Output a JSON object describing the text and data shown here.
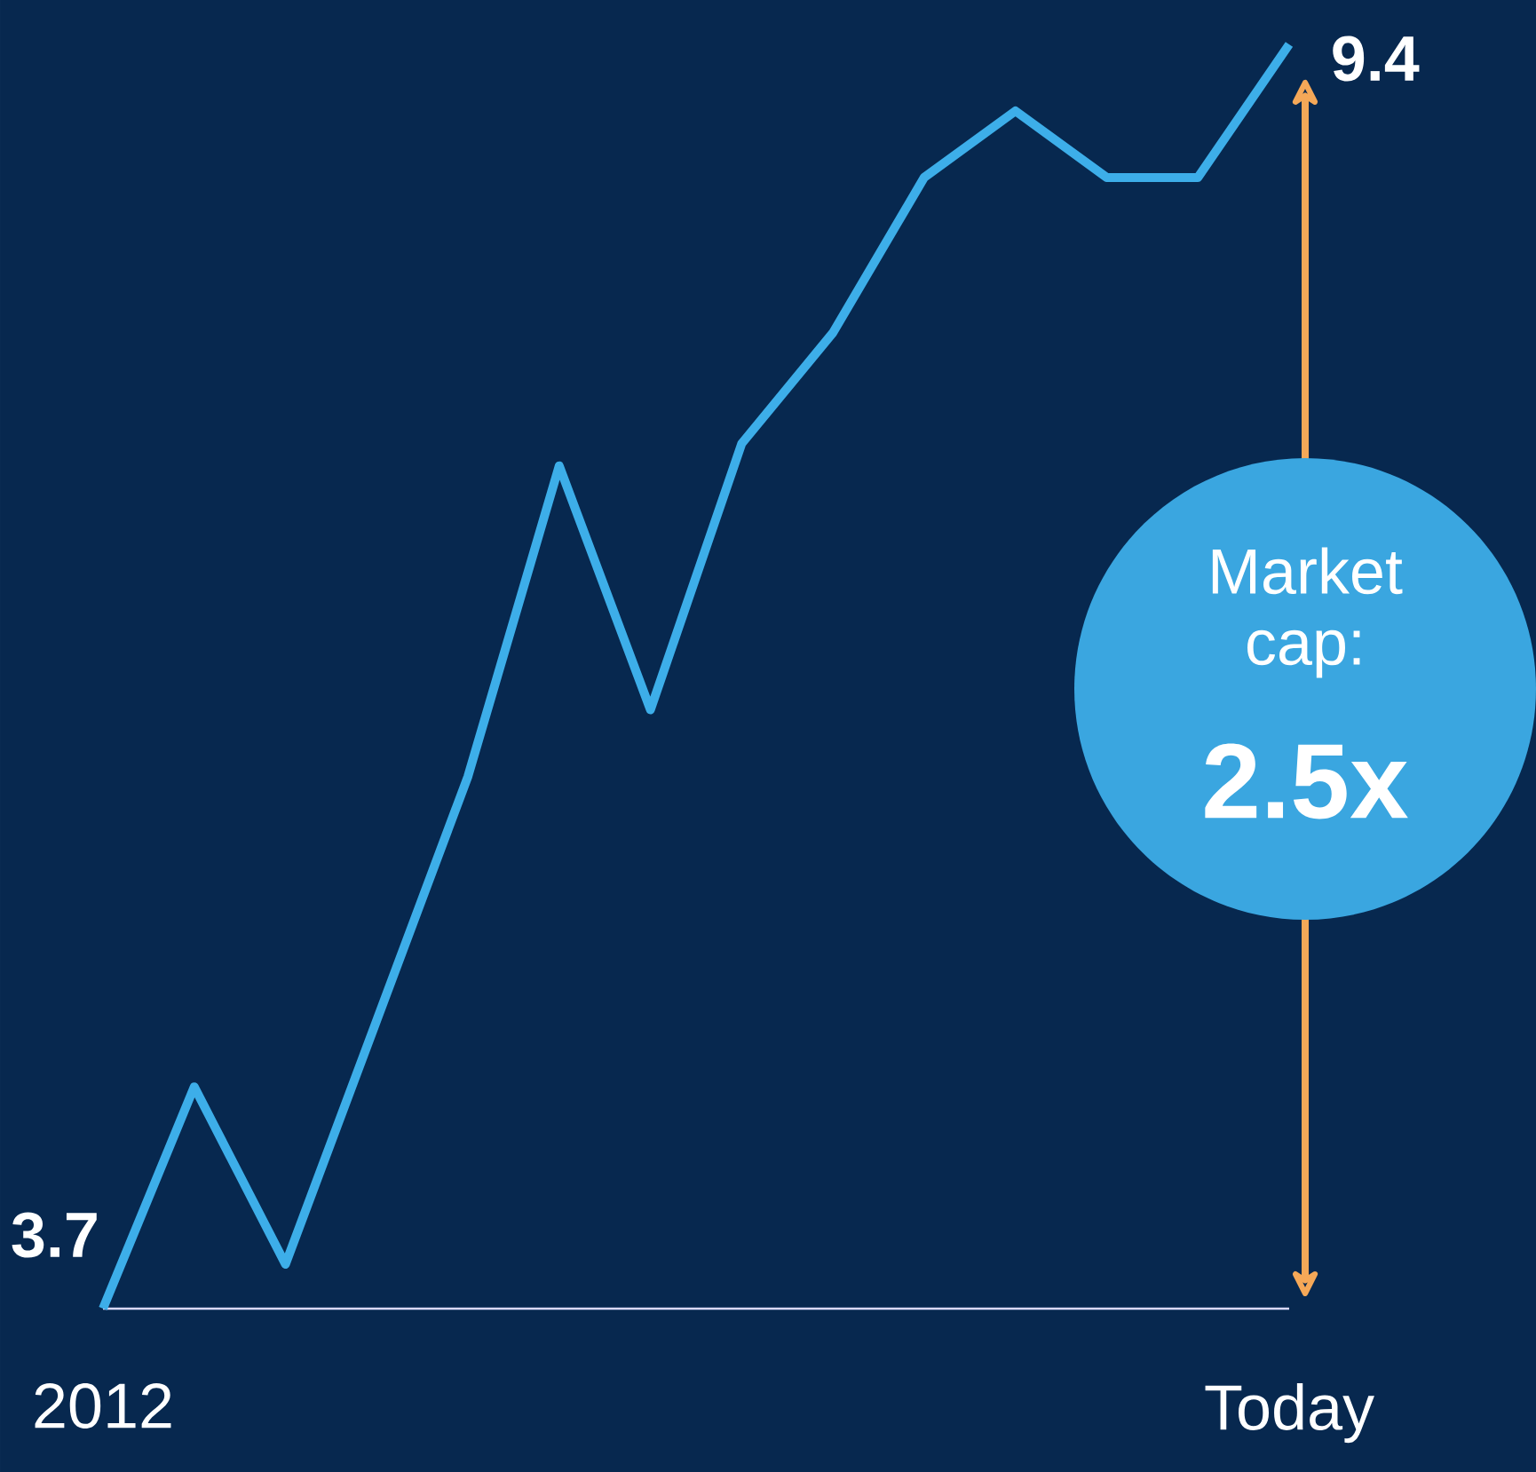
{
  "chart_data": {
    "type": "line",
    "categories": [
      "2012",
      null,
      null,
      null,
      null,
      null,
      null,
      null,
      null,
      null,
      null,
      null,
      null,
      "Today"
    ],
    "series": [
      {
        "color": "#3daee9",
        "values": [
          3.7,
          4.7,
          3.9,
          5.0,
          6.1,
          7.5,
          6.4,
          7.6,
          8.1,
          8.8,
          9.1,
          8.8,
          8.8,
          9.4
        ],
        "value_labels": [
          "3.7",
          null,
          null,
          null,
          null,
          null,
          null,
          null,
          null,
          null,
          null,
          null,
          null,
          "9.4"
        ]
      }
    ],
    "annotations": [
      "Market cap:",
      "2.5x"
    ]
  }
}
